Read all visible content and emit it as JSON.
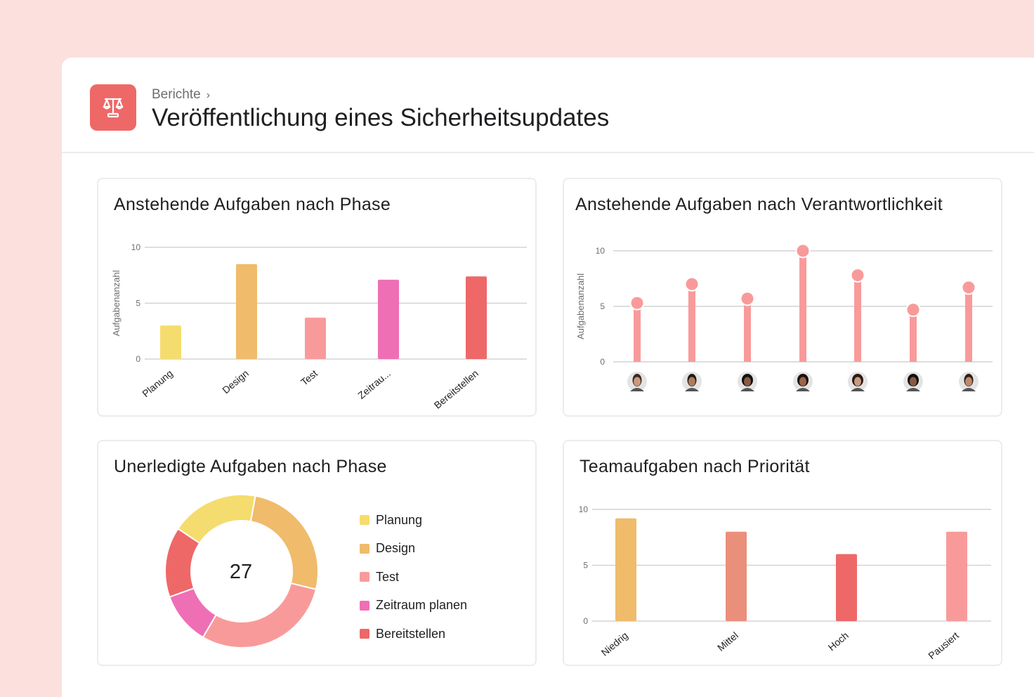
{
  "header": {
    "breadcrumb": "Berichte",
    "breadcrumb_sep": "›",
    "title": "Veröffentlichung eines Sicherheitsupdates",
    "icon": "scale-icon",
    "accent": "#ee6868"
  },
  "panels": {
    "phase": {
      "title": "Anstehende Aufgaben nach Phase"
    },
    "owner": {
      "title": "Anstehende Aufgaben nach Verantwortlichkeit"
    },
    "open": {
      "title": "Unerledigte Aufgaben nach Phase"
    },
    "priority": {
      "title": "Teamaufgaben nach Priorität"
    }
  },
  "chart_data": [
    {
      "type": "bar",
      "title": "Anstehende Aufgaben nach Phase",
      "ylabel": "Aufgabenanzahl",
      "ylim": [
        0,
        10
      ],
      "yticks": [
        "0",
        "5",
        "10"
      ],
      "grid": true,
      "categories": [
        "Planung",
        "Design",
        "Test",
        "Zeitrau...",
        "Bereitstellen"
      ],
      "values": [
        3,
        8.5,
        3.7,
        7.1,
        7.4
      ],
      "colors": [
        "#f5dc6e",
        "#f0bb6b",
        "#f99a9a",
        "#ef6fb5",
        "#ee6868"
      ]
    },
    {
      "type": "lollipop",
      "title": "Anstehende Aufgaben nach Verantwortlichkeit",
      "ylabel": "Aufgabenanzahl",
      "ylim": [
        0,
        10
      ],
      "yticks": [
        "0",
        "5",
        "10"
      ],
      "grid": true,
      "categories": [
        "avatar-1",
        "avatar-2",
        "avatar-3",
        "avatar-4",
        "avatar-5",
        "avatar-6",
        "avatar-7"
      ],
      "values": [
        5.3,
        7,
        5.7,
        10,
        7.8,
        4.7,
        6.7
      ],
      "color": "#f99a9a"
    },
    {
      "type": "pie",
      "title": "Unerledigte Aufgaben nach Phase",
      "total": "27",
      "legend": "right",
      "categories": [
        "Planung",
        "Design",
        "Test",
        "Zeitraum planen",
        "Bereitstellen"
      ],
      "values": [
        5,
        7,
        8,
        3,
        4
      ],
      "colors": [
        "#f5dc6e",
        "#f0bb6b",
        "#f99a9a",
        "#ef6fb5",
        "#ee6868"
      ]
    },
    {
      "type": "bar",
      "title": "Teamaufgaben nach Priorität",
      "ylim": [
        0,
        10
      ],
      "yticks": [
        "0",
        "5",
        "10"
      ],
      "grid": true,
      "categories": [
        "Niedrig",
        "Mittel",
        "Hoch",
        "Pausiert"
      ],
      "values": [
        9.2,
        8,
        6,
        8
      ],
      "colors": [
        "#f0bb6b",
        "#ea8f7a",
        "#ee6868",
        "#f99a9a"
      ]
    }
  ]
}
